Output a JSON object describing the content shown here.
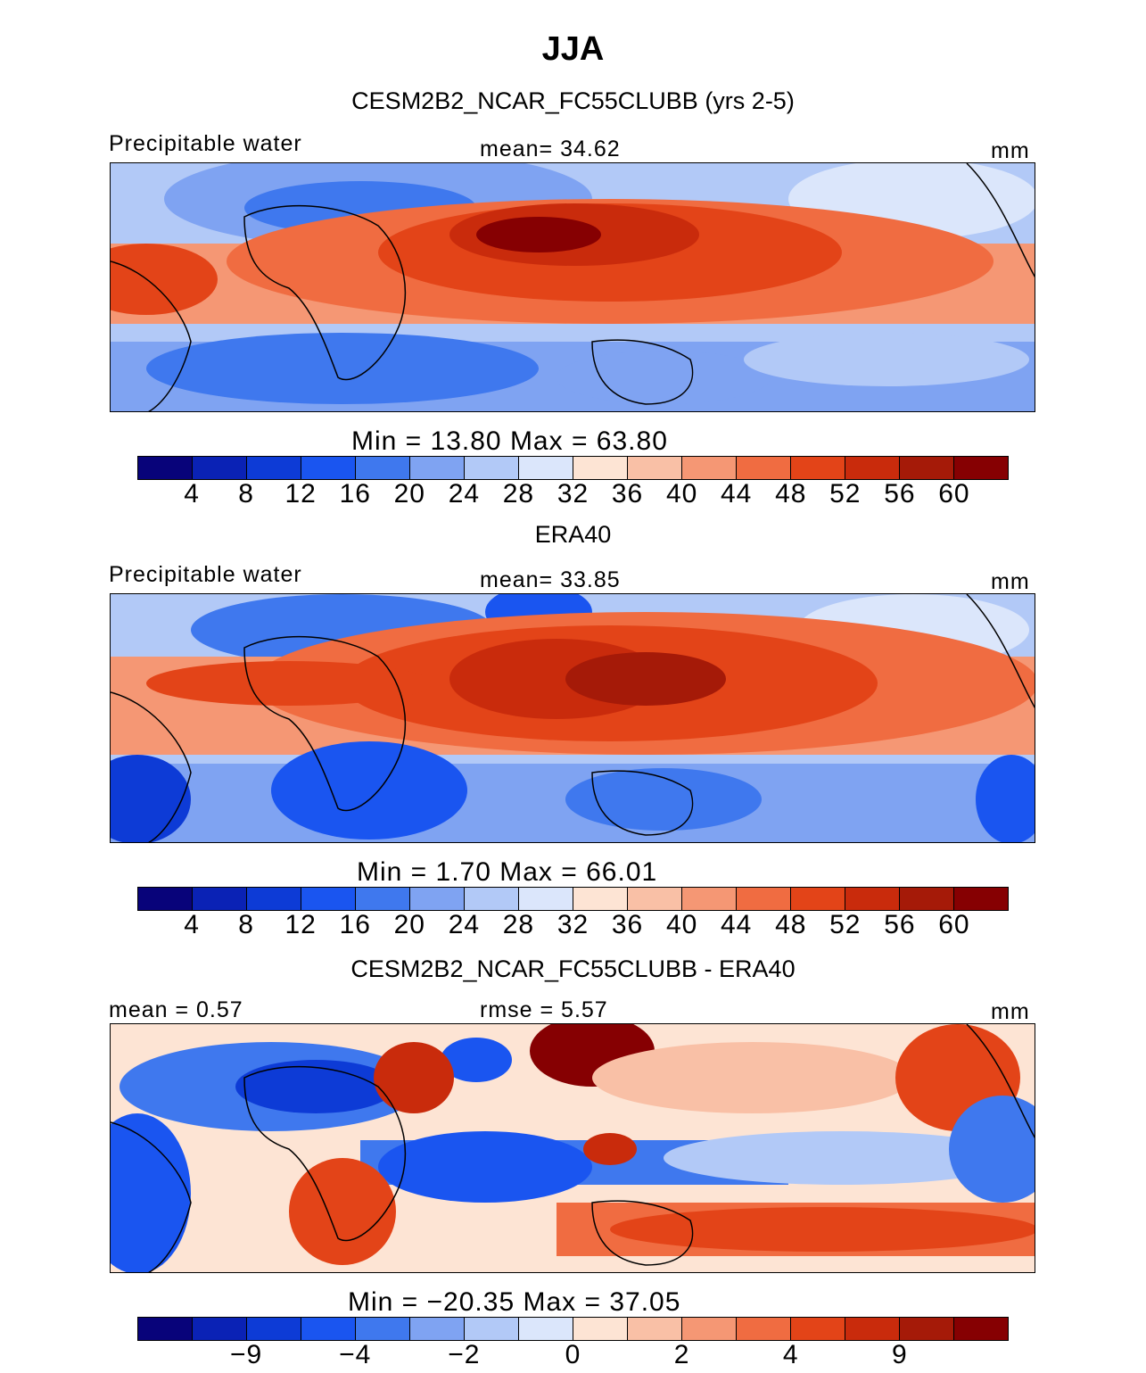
{
  "title": "JJA",
  "panels": [
    {
      "heading": "CESM2B2_NCAR_FC55CLUBB (yrs 2-5)",
      "left_label": "Precipitable water",
      "center_label": "mean=   34.62",
      "units": "mm",
      "minmax": "Min =   13.80 Max =   63.80",
      "tick_labels": [
        "4",
        "8",
        "12",
        "16",
        "20",
        "24",
        "28",
        "32",
        "36",
        "40",
        "44",
        "48",
        "52",
        "56",
        "60"
      ]
    },
    {
      "heading": "ERA40",
      "left_label": "Precipitable water",
      "center_label": "mean=   33.85",
      "units": "mm",
      "minmax": "Min =    1.70 Max =   66.01",
      "tick_labels": [
        "4",
        "8",
        "12",
        "16",
        "20",
        "24",
        "28",
        "32",
        "36",
        "40",
        "44",
        "48",
        "52",
        "56",
        "60"
      ]
    },
    {
      "heading": "CESM2B2_NCAR_FC55CLUBB - ERA40",
      "left_label": "mean =   0.57",
      "center_label": "rmse =    5.57",
      "units": "mm",
      "minmax": "Min = −20.35 Max =   37.05",
      "tick_labels": [
        "−9",
        "−4",
        "−2",
        "0",
        "2",
        "4",
        "9"
      ]
    }
  ],
  "colors": {
    "scale": [
      "#08037a",
      "#0a22b5",
      "#0d3bd6",
      "#1a55f0",
      "#3f78ee",
      "#7fa3f2",
      "#b2c9f7",
      "#dbe6fb",
      "#fde4d4",
      "#f9c0a6",
      "#f59774",
      "#f06c41",
      "#e34418",
      "#c92b0c",
      "#a51a08",
      "#860002"
    ],
    "land_outline": "#000000"
  },
  "chart_data": [
    {
      "type": "heatmap",
      "title": "CESM2B2_NCAR_FC55CLUBB (yrs 2-5)",
      "variable": "Precipitable water",
      "units": "mm",
      "mean": 34.62,
      "min": 13.8,
      "max": 63.8,
      "contour_levels": [
        4,
        8,
        12,
        16,
        20,
        24,
        28,
        32,
        36,
        40,
        44,
        48,
        52,
        56,
        60
      ],
      "field_summary": "Max values (>56 mm) over South/Southeast Asia and the western Pacific; tropical band 44-56 mm across Atlantic and Pacific; low values (12-24 mm) over the Sahara, southern Africa and Southern Hemisphere subtropics"
    },
    {
      "type": "heatmap",
      "title": "ERA40",
      "variable": "Precipitable water",
      "units": "mm",
      "mean": 33.85,
      "min": 1.7,
      "max": 66.01,
      "contour_levels": [
        4,
        8,
        12,
        16,
        20,
        24,
        28,
        32,
        36,
        40,
        44,
        48,
        52,
        56,
        60
      ],
      "field_summary": "Max values over India, Bay of Bengal and the western Pacific warm pool; very dry over the Himalaya/Tibet and southern Africa"
    },
    {
      "type": "heatmap",
      "title": "CESM2B2_NCAR_FC55CLUBB - ERA40",
      "units": "mm",
      "mean": 0.57,
      "rmse": 5.57,
      "min": -20.35,
      "max": 37.05,
      "contour_levels": [
        -9,
        -4,
        -2,
        0,
        2,
        4,
        9
      ],
      "field_summary": "Large positive bias over the Himalaya/Tibet and Central America; negative bias over the Sahara, Indian Ocean and tropical South America; positive bias over southern Africa and the Southern Hemisphere Pacific band"
    }
  ]
}
